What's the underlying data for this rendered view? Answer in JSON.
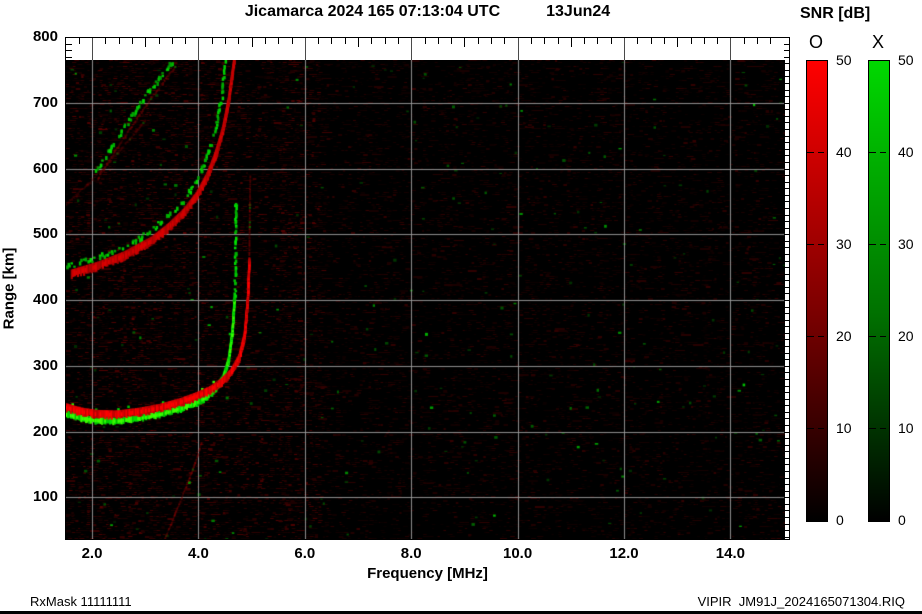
{
  "title": {
    "main": "Jicamarca 2024 165 07:13:04 UTC",
    "date": "13Jun24"
  },
  "axes": {
    "x": {
      "label": "Frequency [MHz]",
      "ticks": [
        "2.0",
        "4.0",
        "6.0",
        "8.0",
        "10.0",
        "12.0",
        "14.0"
      ],
      "tick_values": [
        2,
        4,
        6,
        8,
        10,
        12,
        14
      ],
      "min": 1.5,
      "max": 15.03
    },
    "y": {
      "label": "Range [km]",
      "ticks": [
        "800",
        "700",
        "600",
        "500",
        "400",
        "300",
        "200",
        "100"
      ],
      "tick_values": [
        800,
        700,
        600,
        500,
        400,
        300,
        200,
        100
      ],
      "min": 35,
      "max": 800,
      "data_top": 765
    }
  },
  "colorbar": {
    "title": "SNR [dB]",
    "bars": [
      {
        "label": "O",
        "top_color": "#ff0000"
      },
      {
        "label": "X",
        "top_color": "#00d800"
      }
    ],
    "ticks": [
      "50",
      "40",
      "30",
      "20",
      "10",
      "0"
    ],
    "tick_values": [
      50,
      40,
      30,
      20,
      10,
      0
    ],
    "min": 0,
    "max": 50
  },
  "footer": {
    "left": "RxMask 11111111",
    "right": "VIPIR  JM91J_2024165071304.RIQ"
  },
  "chart_data": {
    "type": "heatmap",
    "description": "VIPIR ionogram: echo SNR (O-mode red, X-mode green) vs sounding frequency and virtual range",
    "title": "Jicamarca 2024 165 07:13:04 UTC 13Jun24",
    "xlabel": "Frequency [MHz]",
    "ylabel": "Range [km]",
    "xlim": [
      1.5,
      15.03
    ],
    "ylim": [
      35,
      800
    ],
    "grid": true,
    "snr_range_dB": [
      0,
      50
    ],
    "background": "#000000",
    "colors": {
      "o_mode": "#ff0000",
      "x_mode": "#00d800",
      "grid": "#969696"
    },
    "traces": [
      {
        "name": "F-1hop-X-green",
        "mode": "X",
        "color": "green",
        "style": "solid",
        "bright": 1.0,
        "alpha": 1.0,
        "width_km": 10,
        "points": [
          [
            1.5,
            227
          ],
          [
            1.75,
            221
          ],
          [
            2.05,
            217
          ],
          [
            2.45,
            216
          ],
          [
            2.85,
            220
          ],
          [
            3.25,
            226
          ],
          [
            3.65,
            235
          ],
          [
            3.95,
            244
          ],
          [
            4.15,
            253
          ],
          [
            4.3,
            264
          ],
          [
            4.45,
            282
          ],
          [
            4.55,
            308
          ],
          [
            4.62,
            350
          ],
          [
            4.66,
            400
          ]
        ]
      },
      {
        "name": "F-1hop-X-asymptote",
        "mode": "X",
        "color": "green",
        "style": "speckle",
        "bright": 0.9,
        "alpha": 0.95,
        "width_km": 5,
        "points": [
          [
            4.66,
            400
          ],
          [
            4.68,
            470
          ],
          [
            4.69,
            557
          ]
        ]
      },
      {
        "name": "F-1hop-O-red",
        "mode": "O",
        "color": "red",
        "style": "solid",
        "bright": 1.0,
        "alpha": 1.0,
        "width_km": 12,
        "points": [
          [
            1.5,
            237
          ],
          [
            1.75,
            231
          ],
          [
            2.05,
            227
          ],
          [
            2.45,
            226
          ],
          [
            2.85,
            230
          ],
          [
            3.25,
            236
          ],
          [
            3.65,
            245
          ],
          [
            3.95,
            254
          ],
          [
            4.2,
            263
          ],
          [
            4.4,
            274
          ],
          [
            4.6,
            290
          ],
          [
            4.75,
            312
          ],
          [
            4.85,
            345
          ],
          [
            4.91,
            400
          ],
          [
            4.94,
            460
          ]
        ]
      },
      {
        "name": "F-1hop-O-asymptote",
        "mode": "O",
        "color": "red",
        "style": "thin",
        "bright": 0.55,
        "alpha": 0.6,
        "width_km": 4,
        "points": [
          [
            4.94,
            460
          ],
          [
            4.95,
            545
          ],
          [
            4.96,
            590
          ]
        ]
      },
      {
        "name": "F-2hop-X-green",
        "mode": "X",
        "color": "green",
        "style": "speckle",
        "bright": 0.85,
        "alpha": 0.95,
        "width_km": 8,
        "points": [
          [
            1.5,
            452
          ],
          [
            2.0,
            464
          ],
          [
            2.5,
            480
          ],
          [
            3.0,
            502
          ],
          [
            3.3,
            521
          ],
          [
            3.6,
            544
          ],
          [
            3.85,
            571
          ],
          [
            4.05,
            601
          ],
          [
            4.2,
            633
          ],
          [
            4.32,
            669
          ],
          [
            4.42,
            713
          ],
          [
            4.48,
            763
          ]
        ]
      },
      {
        "name": "F-2hop-O-red",
        "mode": "O",
        "color": "red",
        "style": "solid",
        "bright": 0.8,
        "alpha": 0.95,
        "width_km": 13,
        "points": [
          [
            1.6,
            440
          ],
          [
            2.1,
            452
          ],
          [
            2.6,
            468
          ],
          [
            3.1,
            490
          ],
          [
            3.4,
            509
          ],
          [
            3.7,
            532
          ],
          [
            3.95,
            558
          ],
          [
            4.15,
            588
          ],
          [
            4.3,
            619
          ],
          [
            4.44,
            657
          ],
          [
            4.55,
            702
          ],
          [
            4.64,
            755
          ],
          [
            4.66,
            765
          ]
        ]
      },
      {
        "name": "spread-diagonal-green",
        "mode": "X",
        "color": "green",
        "style": "speckle",
        "bright": 0.8,
        "alpha": 0.9,
        "width_km": 6,
        "points": [
          [
            2.05,
            597
          ],
          [
            2.4,
            641
          ],
          [
            2.75,
            684
          ],
          [
            3.05,
            719
          ],
          [
            3.3,
            744
          ],
          [
            3.5,
            764
          ]
        ]
      },
      {
        "name": "spread-diagonal-red",
        "mode": "O",
        "color": "red",
        "style": "thin",
        "bright": 0.5,
        "alpha": 0.55,
        "width_km": 8,
        "points": [
          [
            2.1,
            585
          ],
          [
            2.45,
            630
          ],
          [
            2.8,
            672
          ],
          [
            3.1,
            707
          ],
          [
            3.35,
            733
          ],
          [
            3.55,
            755
          ]
        ]
      },
      {
        "name": "spread-faint-red-2",
        "mode": "O",
        "color": "red",
        "style": "thin",
        "bright": 0.35,
        "alpha": 0.4,
        "width_km": 7,
        "points": [
          [
            1.5,
            545
          ],
          [
            1.9,
            575
          ],
          [
            2.3,
            608
          ],
          [
            2.7,
            645
          ],
          [
            3.0,
            675
          ]
        ]
      },
      {
        "name": "low-altitude-faint-red",
        "mode": "O",
        "color": "red",
        "style": "thin",
        "bright": 0.5,
        "alpha": 0.55,
        "width_km": 5,
        "points": [
          [
            3.35,
            35
          ],
          [
            3.55,
            75
          ],
          [
            3.75,
            115
          ],
          [
            3.95,
            158
          ],
          [
            4.05,
            185
          ]
        ]
      }
    ],
    "interference_columns": [
      {
        "f": 13.5,
        "h_lo": 120,
        "h_hi": 480,
        "alpha": 0.1
      },
      {
        "f": 8.25,
        "h_lo": 60,
        "h_hi": 520,
        "alpha": 0.05
      },
      {
        "f": 10.15,
        "h_lo": 80,
        "h_hi": 500,
        "alpha": 0.05
      },
      {
        "f": 6.6,
        "h_lo": 40,
        "h_hi": 400,
        "alpha": 0.05
      },
      {
        "f": 3.05,
        "h_lo": 35,
        "h_hi": 760,
        "alpha": 0.06
      },
      {
        "f": 2.3,
        "h_lo": 35,
        "h_hi": 760,
        "alpha": 0.05
      }
    ],
    "noise": {
      "red_density_left": 0.38,
      "red_density_right": 0.2,
      "green_dot_count": 260
    }
  }
}
